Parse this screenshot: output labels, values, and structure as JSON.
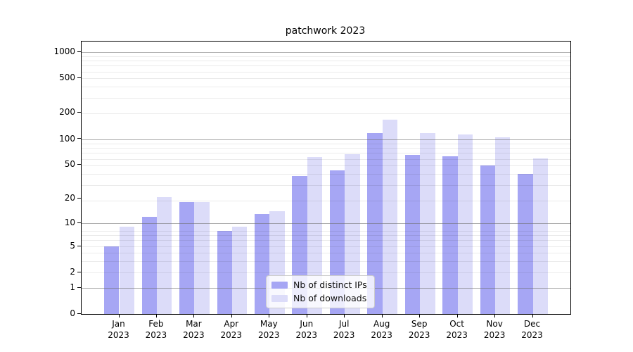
{
  "chart_data": {
    "type": "bar",
    "title": "patchwork 2023",
    "categories": [
      "Jan 2023",
      "Feb 2023",
      "Mar 2023",
      "Apr 2023",
      "May 2023",
      "Jun 2023",
      "Jul 2023",
      "Aug 2023",
      "Sep 2023",
      "Oct 2023",
      "Nov 2023",
      "Dec 2023"
    ],
    "series": [
      {
        "name": "Nb of distinct IPs",
        "color": "#a6a6f4",
        "values": [
          5,
          12,
          18,
          8,
          13,
          37,
          43,
          118,
          66,
          63,
          49,
          39
        ]
      },
      {
        "name": "Nb of downloads",
        "color": "#dcdcf9",
        "values": [
          9,
          21,
          18,
          9,
          14,
          62,
          67,
          167,
          117,
          114,
          105,
          60
        ]
      }
    ],
    "yticks": [
      0,
      1,
      2,
      5,
      10,
      20,
      50,
      100,
      200,
      500,
      1000
    ],
    "yscale": "log10(value+1)",
    "ylim": [
      0,
      1300
    ],
    "xlabel": "",
    "ylabel": "",
    "grid": true,
    "legend_position": "lower center",
    "colors": {
      "background": "#ffffff",
      "spine": "#000000",
      "major_grid": "#b0b0b0",
      "minor_grid": "#e9e9e9",
      "legend_border": "#cccccc"
    }
  }
}
